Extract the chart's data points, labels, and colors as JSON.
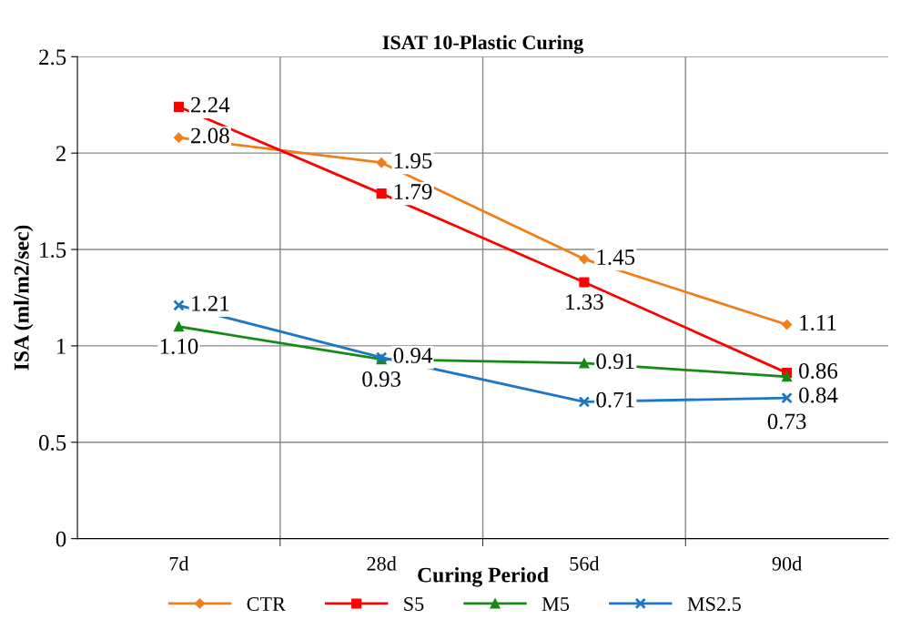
{
  "chart_data": {
    "type": "line",
    "title": "ISAT 10-Plastic Curing",
    "xlabel": "Curing Period",
    "ylabel": "ISA (ml/m2/sec)",
    "categories": [
      "7d",
      "28d",
      "56d",
      "90d"
    ],
    "series": [
      {
        "name": "CTR",
        "color": "#f07f1a",
        "marker": "diamond",
        "values": [
          2.08,
          1.95,
          1.45,
          1.11
        ],
        "value_labels": [
          "2.08",
          "1.95",
          "1.45",
          "1.11"
        ]
      },
      {
        "name": "S5",
        "color": "#ff0000",
        "marker": "square",
        "values": [
          2.24,
          1.79,
          1.33,
          0.86
        ],
        "value_labels": [
          "2.24",
          "1.79",
          "1.33",
          "0.86"
        ]
      },
      {
        "name": "M5",
        "color": "#158a15",
        "marker": "triangle",
        "values": [
          1.1,
          0.93,
          0.91,
          0.84
        ],
        "value_labels": [
          "1.10",
          "0.93",
          "0.91",
          "0.84"
        ]
      },
      {
        "name": "MS2.5",
        "color": "#1f77c4",
        "marker": "cross",
        "values": [
          1.21,
          0.94,
          0.71,
          0.73
        ],
        "value_labels": [
          "1.21",
          "0.94",
          "0.71",
          "0.73"
        ]
      }
    ],
    "ylim": [
      0,
      2.5
    ],
    "yticks": [
      0,
      0.5,
      1,
      1.5,
      2,
      2.5
    ],
    "grid": true,
    "legend": "bottom",
    "line_style": "solid"
  }
}
